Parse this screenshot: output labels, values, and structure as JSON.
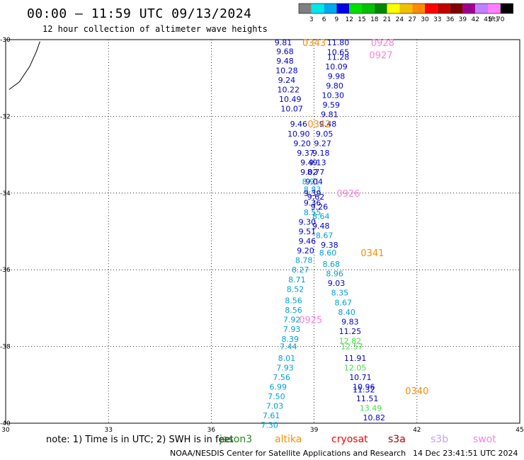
{
  "header": {
    "title": "00:00  –  11:59 UTC 09/13/2024",
    "subtitle": "12 hour collection of altimeter wave heights"
  },
  "colorbar": {
    "colors": [
      "#808080",
      "#00e8e8",
      "#00a8f0",
      "#0000e0",
      "#00e000",
      "#00c000",
      "#008800",
      "#ffff00",
      "#f0c000",
      "#ff8c00",
      "#ff0000",
      "#c00000",
      "#800000",
      "#a00090",
      "#c080ff",
      "#ff80ff",
      "#000000"
    ],
    "labels": [
      "3",
      "6",
      "9",
      "12",
      "15",
      "18",
      "21",
      "24",
      "27",
      "30",
      "33",
      "36",
      "39",
      "42",
      "45",
      "70"
    ],
    "unit": "(ft)"
  },
  "footer": {
    "note": "note:  1) Time is in UTC; 2) SWH is in feet",
    "credit": "NOAA/NESDIS Center for Satellite Applications and Research",
    "timestamp": "14 Dec 23:41:51 UTC 2024"
  },
  "satellites": [
    {
      "name": "jason3",
      "color": "#228b22"
    },
    {
      "name": "altika",
      "color": "#ff8c00"
    },
    {
      "name": "cryosat",
      "color": "#ff0000"
    },
    {
      "name": "s3a",
      "color": "#b00000"
    },
    {
      "name": "s3b",
      "color": "#c0a0ff"
    },
    {
      "name": "swot",
      "color": "#ff80e0"
    }
  ],
  "chart_data": {
    "type": "scatter",
    "xlim": [
      30,
      45
    ],
    "ylim": [
      -30,
      -40
    ],
    "x_ticks": [
      "30",
      "33",
      "36",
      "39",
      "42",
      "45"
    ],
    "y_ticks": [
      "-30",
      "-32",
      "-34",
      "-36",
      "-38",
      "-40"
    ],
    "grid": true,
    "coastline": [
      [
        30.1,
        -31.3
      ],
      [
        30.4,
        -31.1
      ],
      [
        30.7,
        -30.7
      ],
      [
        30.9,
        -30.3
      ],
      [
        31.0,
        -30.05
      ]
    ],
    "color_map": {
      "blue": "#0000cd",
      "cyan": "#00a0d8",
      "green": "#44dd44"
    },
    "points": [
      {
        "x": 38.1,
        "y": -30.07,
        "v": "9.81",
        "c": "blue"
      },
      {
        "x": 38.15,
        "y": -30.3,
        "v": "9.68",
        "c": "blue"
      },
      {
        "x": 38.15,
        "y": -30.55,
        "v": "9.48",
        "c": "blue"
      },
      {
        "x": 38.2,
        "y": -30.8,
        "v": "10.28",
        "c": "blue"
      },
      {
        "x": 38.2,
        "y": -31.05,
        "v": "9.24",
        "c": "blue"
      },
      {
        "x": 38.25,
        "y": -31.3,
        "v": "10.22",
        "c": "blue"
      },
      {
        "x": 38.3,
        "y": -31.55,
        "v": "10.49",
        "c": "blue"
      },
      {
        "x": 38.35,
        "y": -31.8,
        "v": "10.07",
        "c": "blue"
      },
      {
        "x": 38.55,
        "y": -32.2,
        "v": "9.46",
        "c": "blue"
      },
      {
        "x": 38.55,
        "y": -32.45,
        "v": "10.90",
        "c": "blue"
      },
      {
        "x": 38.65,
        "y": -32.7,
        "v": "9.20",
        "c": "blue"
      },
      {
        "x": 38.75,
        "y": -32.95,
        "v": "9.37",
        "c": "blue"
      },
      {
        "x": 38.85,
        "y": -33.2,
        "v": "9.49",
        "c": "blue"
      },
      {
        "x": 38.85,
        "y": -33.45,
        "v": "9.02",
        "c": "blue"
      },
      {
        "x": 38.9,
        "y": -33.7,
        "v": "8.91",
        "c": "cyan"
      },
      {
        "x": 38.95,
        "y": -33.9,
        "v": "8.83",
        "c": "cyan"
      },
      {
        "x": 38.95,
        "y": -34.0,
        "v": "9.39",
        "c": "blue"
      },
      {
        "x": 38.95,
        "y": -34.25,
        "v": "9.36",
        "c": "blue"
      },
      {
        "x": 38.95,
        "y": -34.5,
        "v": "8.55",
        "c": "cyan"
      },
      {
        "x": 38.8,
        "y": -34.75,
        "v": "9.30",
        "c": "blue"
      },
      {
        "x": 38.8,
        "y": -35.0,
        "v": "9.51",
        "c": "blue"
      },
      {
        "x": 38.8,
        "y": -35.25,
        "v": "9.46",
        "c": "blue"
      },
      {
        "x": 38.75,
        "y": -35.5,
        "v": "9.20",
        "c": "blue"
      },
      {
        "x": 38.7,
        "y": -35.75,
        "v": "8.78",
        "c": "cyan"
      },
      {
        "x": 38.6,
        "y": -36.0,
        "v": "8.27",
        "c": "cyan"
      },
      {
        "x": 38.5,
        "y": -36.25,
        "v": "8.71",
        "c": "cyan"
      },
      {
        "x": 38.45,
        "y": -36.5,
        "v": "8.52",
        "c": "cyan"
      },
      {
        "x": 38.4,
        "y": -36.8,
        "v": "8.56",
        "c": "cyan"
      },
      {
        "x": 38.4,
        "y": -37.05,
        "v": "8.56",
        "c": "cyan"
      },
      {
        "x": 38.35,
        "y": -37.3,
        "v": "7.92",
        "c": "cyan"
      },
      {
        "x": 38.35,
        "y": -37.55,
        "v": "7.93",
        "c": "cyan"
      },
      {
        "x": 38.3,
        "y": -37.8,
        "v": "8.39",
        "c": "cyan"
      },
      {
        "x": 38.25,
        "y": -38.0,
        "v": "7.44",
        "c": "cyan"
      },
      {
        "x": 38.2,
        "y": -38.3,
        "v": "8.01",
        "c": "cyan"
      },
      {
        "x": 38.15,
        "y": -38.55,
        "v": "7.93",
        "c": "cyan"
      },
      {
        "x": 38.05,
        "y": -38.8,
        "v": "7.56",
        "c": "cyan"
      },
      {
        "x": 37.95,
        "y": -39.05,
        "v": "6.99",
        "c": "cyan"
      },
      {
        "x": 37.9,
        "y": -39.3,
        "v": "7.50",
        "c": "cyan"
      },
      {
        "x": 37.85,
        "y": -39.55,
        "v": "7.03",
        "c": "cyan"
      },
      {
        "x": 37.75,
        "y": -39.8,
        "v": "7.61",
        "c": "cyan"
      },
      {
        "x": 37.7,
        "y": -40.05,
        "v": "7.30",
        "c": "cyan"
      },
      {
        "x": 39.7,
        "y": -30.07,
        "v": "11.80",
        "c": "blue"
      },
      {
        "x": 39.7,
        "y": -30.32,
        "v": "10.65",
        "c": "blue"
      },
      {
        "x": 39.7,
        "y": -30.45,
        "v": "11.28",
        "c": "blue"
      },
      {
        "x": 39.65,
        "y": -30.7,
        "v": "10.09",
        "c": "blue"
      },
      {
        "x": 39.65,
        "y": -30.95,
        "v": "9.98",
        "c": "blue"
      },
      {
        "x": 39.6,
        "y": -31.2,
        "v": "9.80",
        "c": "blue"
      },
      {
        "x": 39.55,
        "y": -31.45,
        "v": "10.30",
        "c": "blue"
      },
      {
        "x": 39.5,
        "y": -31.7,
        "v": "9.59",
        "c": "blue"
      },
      {
        "x": 39.45,
        "y": -31.95,
        "v": "9.81",
        "c": "blue"
      },
      {
        "x": 39.4,
        "y": -32.2,
        "v": "9.48",
        "c": "blue"
      },
      {
        "x": 39.3,
        "y": -32.45,
        "v": "9.05",
        "c": "blue"
      },
      {
        "x": 39.25,
        "y": -32.7,
        "v": "9.27",
        "c": "blue"
      },
      {
        "x": 39.2,
        "y": -32.95,
        "v": "9.18",
        "c": "blue"
      },
      {
        "x": 39.1,
        "y": -33.2,
        "v": "9.13",
        "c": "blue"
      },
      {
        "x": 39.05,
        "y": -33.45,
        "v": "8.77",
        "c": "blue"
      },
      {
        "x": 39.0,
        "y": -33.7,
        "v": "9.04",
        "c": "blue"
      },
      {
        "x": 39.05,
        "y": -34.1,
        "v": "9.62",
        "c": "blue"
      },
      {
        "x": 39.15,
        "y": -34.35,
        "v": "9.26",
        "c": "blue"
      },
      {
        "x": 39.2,
        "y": -34.6,
        "v": "8.64",
        "c": "cyan"
      },
      {
        "x": 39.2,
        "y": -34.85,
        "v": "9.48",
        "c": "blue"
      },
      {
        "x": 39.3,
        "y": -35.1,
        "v": "8.67",
        "c": "cyan"
      },
      {
        "x": 39.45,
        "y": -35.35,
        "v": "9.38",
        "c": "blue"
      },
      {
        "x": 39.4,
        "y": -35.55,
        "v": "8.60",
        "c": "cyan"
      },
      {
        "x": 39.5,
        "y": -35.85,
        "v": "8.68",
        "c": "cyan"
      },
      {
        "x": 39.6,
        "y": -36.1,
        "v": "8.96",
        "c": "cyan"
      },
      {
        "x": 39.65,
        "y": -36.35,
        "v": "9.03",
        "c": "blue"
      },
      {
        "x": 39.75,
        "y": -36.6,
        "v": "8.35",
        "c": "cyan"
      },
      {
        "x": 39.85,
        "y": -36.85,
        "v": "8.67",
        "c": "cyan"
      },
      {
        "x": 39.95,
        "y": -37.1,
        "v": "8.40",
        "c": "cyan"
      },
      {
        "x": 40.05,
        "y": -37.35,
        "v": "9.83",
        "c": "blue"
      },
      {
        "x": 40.05,
        "y": -37.6,
        "v": "11.25",
        "c": "blue"
      },
      {
        "x": 40.05,
        "y": -37.85,
        "v": "12.82",
        "c": "green"
      },
      {
        "x": 40.1,
        "y": -38.0,
        "v": "12.57",
        "c": "green"
      },
      {
        "x": 40.2,
        "y": -38.3,
        "v": "11.91",
        "c": "blue"
      },
      {
        "x": 40.2,
        "y": -38.55,
        "v": "12.05",
        "c": "green"
      },
      {
        "x": 40.35,
        "y": -38.8,
        "v": "10.71",
        "c": "blue"
      },
      {
        "x": 40.45,
        "y": -39.05,
        "v": "10.96",
        "c": "blue"
      },
      {
        "x": 40.45,
        "y": -39.12,
        "v": "11.32",
        "c": "blue"
      },
      {
        "x": 40.55,
        "y": -39.35,
        "v": "11.51",
        "c": "blue"
      },
      {
        "x": 40.65,
        "y": -39.6,
        "v": "13.49",
        "c": "green"
      },
      {
        "x": 40.75,
        "y": -39.85,
        "v": "10.82",
        "c": "blue"
      }
    ],
    "time_labels": [
      {
        "x": 39.0,
        "y": -30.07,
        "v": "0343",
        "c": "orange"
      },
      {
        "x": 39.15,
        "y": -32.2,
        "v": "0342",
        "c": "orange"
      },
      {
        "x": 40.7,
        "y": -35.55,
        "v": "0341",
        "c": "orange"
      },
      {
        "x": 42.0,
        "y": -39.15,
        "v": "0340",
        "c": "orange"
      },
      {
        "x": 41.0,
        "y": -30.07,
        "v": "0928",
        "c": "pink"
      },
      {
        "x": 40.95,
        "y": -30.4,
        "v": "0927",
        "c": "pink"
      },
      {
        "x": 40.0,
        "y": -34.0,
        "v": "0926",
        "c": "pink"
      },
      {
        "x": 38.9,
        "y": -37.3,
        "v": "0925",
        "c": "pink"
      }
    ],
    "time_colors": {
      "orange": "#ff8c00",
      "pink": "#ff80e0"
    }
  }
}
